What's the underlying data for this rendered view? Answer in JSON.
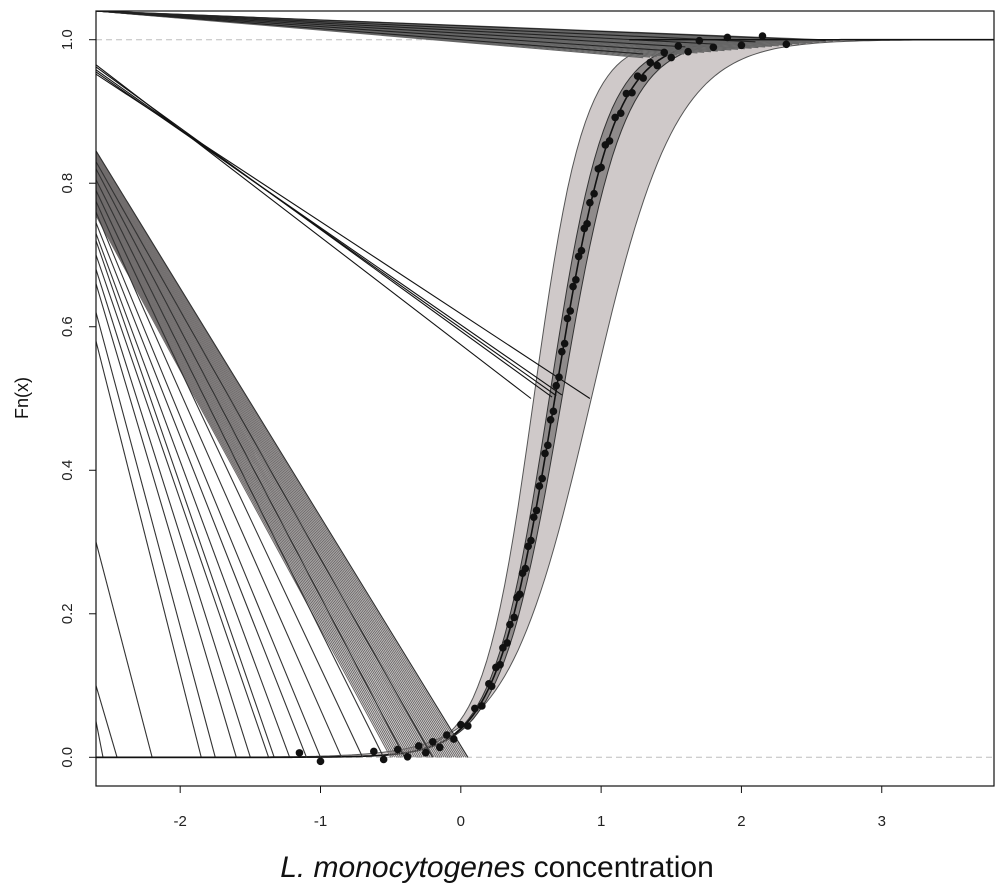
{
  "chart_data": {
    "type": "line",
    "title": "",
    "xlabel_italic": "L. monocytogenes",
    "xlabel_rest": " concentration",
    "ylabel": "Fn(x)",
    "xlim": [
      -2.6,
      3.8
    ],
    "ylim": [
      -0.04,
      1.04
    ],
    "x_ticks": [
      -2,
      -1,
      0,
      1,
      2,
      3
    ],
    "x_tick_labels": [
      "-2",
      "-1",
      "0",
      "1",
      "2",
      "3"
    ],
    "y_ticks": [
      0.0,
      0.2,
      0.4,
      0.6,
      0.8,
      1.0
    ],
    "y_tick_labels": [
      "0.0",
      "0.2",
      "0.4",
      "0.6",
      "0.8",
      "1.0"
    ],
    "reference_lines": [
      0,
      1
    ],
    "cdf": {
      "center": 0.67,
      "scale": 0.21
    },
    "band": {
      "lower_center": 0.52,
      "lower_scale": 0.18,
      "upper_center": 0.93,
      "upper_scale": 0.3
    },
    "inner_band": {
      "lower_center": 0.63,
      "lower_scale": 0.2,
      "upper_center": 0.72,
      "upper_scale": 0.22
    },
    "points_x": [
      -1.15,
      -1.0,
      -0.62,
      -0.55,
      -0.45,
      -0.38,
      -0.3,
      -0.25,
      -0.2,
      -0.15,
      -0.1,
      -0.05,
      0.0,
      0.05,
      0.1,
      0.15,
      0.2,
      0.22,
      0.25,
      0.28,
      0.3,
      0.33,
      0.35,
      0.38,
      0.4,
      0.42,
      0.44,
      0.46,
      0.48,
      0.5,
      0.52,
      0.54,
      0.56,
      0.58,
      0.6,
      0.62,
      0.64,
      0.66,
      0.68,
      0.7,
      0.72,
      0.74,
      0.76,
      0.78,
      0.8,
      0.82,
      0.84,
      0.86,
      0.88,
      0.9,
      0.92,
      0.95,
      0.98,
      1.0,
      1.03,
      1.06,
      1.1,
      1.14,
      1.18,
      1.22,
      1.26,
      1.3,
      1.35,
      1.4,
      1.45,
      1.5,
      1.55,
      1.62,
      1.7,
      1.8,
      1.9,
      2.0,
      2.15,
      2.32
    ],
    "lines_low": [
      {
        "x0": -2.6,
        "y0": 0.845,
        "x1": 0.05,
        "y1": 0.0
      },
      {
        "x0": -2.6,
        "y0": 0.83,
        "x1": -0.2,
        "y1": 0.0
      },
      {
        "x0": -2.6,
        "y0": 0.82,
        "x1": -0.4,
        "y1": 0.0
      },
      {
        "x0": -2.6,
        "y0": 0.805,
        "x1": -0.55,
        "y1": 0.0
      },
      {
        "x0": -2.6,
        "y0": 0.79,
        "x1": -0.7,
        "y1": 0.0
      },
      {
        "x0": -2.6,
        "y0": 0.775,
        "x1": -0.85,
        "y1": 0.0
      },
      {
        "x0": -2.6,
        "y0": 0.76,
        "x1": -1.0,
        "y1": 0.0
      },
      {
        "x0": -2.6,
        "y0": 0.745,
        "x1": -1.1,
        "y1": 0.0
      },
      {
        "x0": -2.6,
        "y0": 0.73,
        "x1": -1.22,
        "y1": 0.0
      },
      {
        "x0": -2.6,
        "y0": 0.72,
        "x1": -1.33,
        "y1": 0.0
      },
      {
        "x0": -2.6,
        "y0": 0.7,
        "x1": -1.37,
        "y1": 0.0
      },
      {
        "x0": -2.6,
        "y0": 0.68,
        "x1": -1.5,
        "y1": 0.0
      },
      {
        "x0": -2.6,
        "y0": 0.66,
        "x1": -1.6,
        "y1": 0.0
      },
      {
        "x0": -2.6,
        "y0": 0.62,
        "x1": -1.75,
        "y1": 0.0
      },
      {
        "x0": -2.6,
        "y0": 0.58,
        "x1": -1.85,
        "y1": 0.0
      },
      {
        "x0": -2.6,
        "y0": 0.3,
        "x1": -2.2,
        "y1": 0.0
      },
      {
        "x0": -2.6,
        "y0": 0.1,
        "x1": -2.45,
        "y1": 0.0
      },
      {
        "x0": -2.6,
        "y0": 0.05,
        "x1": -2.55,
        "y1": 0.0
      }
    ],
    "lines_mid": [
      {
        "x0": -2.6,
        "y0": 0.965,
        "x1": 0.5,
        "y1": 0.5
      },
      {
        "x0": -2.6,
        "y0": 0.962,
        "x1": 0.65,
        "y1": 0.502
      },
      {
        "x0": -2.6,
        "y0": 0.958,
        "x1": 0.68,
        "y1": 0.504
      },
      {
        "x0": -2.6,
        "y0": 0.955,
        "x1": 0.72,
        "y1": 0.505
      },
      {
        "x0": -2.6,
        "y0": 0.952,
        "x1": 0.92,
        "y1": 0.5
      }
    ],
    "lines_top": [
      {
        "x0": -2.6,
        "y0": 1.04,
        "x1": 1.3,
        "y1": 0.98
      },
      {
        "x0": -2.6,
        "y0": 1.04,
        "x1": 1.45,
        "y1": 0.985
      },
      {
        "x0": -2.6,
        "y0": 1.04,
        "x1": 1.6,
        "y1": 0.99
      },
      {
        "x0": -2.6,
        "y0": 1.04,
        "x1": 1.8,
        "y1": 0.994
      },
      {
        "x0": -2.6,
        "y0": 1.04,
        "x1": 2.1,
        "y1": 0.997
      },
      {
        "x0": -2.6,
        "y0": 1.04,
        "x1": 2.6,
        "y1": 0.999
      }
    ]
  }
}
